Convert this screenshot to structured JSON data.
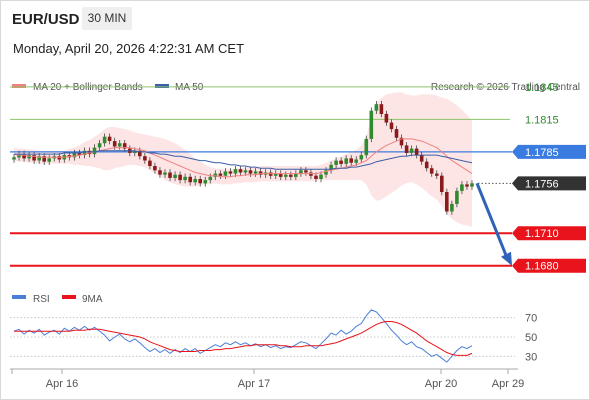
{
  "header": {
    "pair": "EUR/USD",
    "timeframe": "30 MIN",
    "datetime": "Monday, April 20, 2026 4:22:31 AM CET"
  },
  "legend": {
    "bollinger": "MA 20 + Bollinger Bands",
    "ma50": "MA 50",
    "credit": "Research © 2026 Trading Central",
    "rsi": "RSI",
    "rsi_ma": "9MA"
  },
  "colors": {
    "up": "#2e8b2e",
    "down": "#8b1a1a",
    "bollinger": "#f08080",
    "band_fill": "#fde0e0",
    "ma50": "#3a5fa8",
    "resistance": "#8cc36a",
    "support": "#e8131b",
    "pivot": "#3a7be0",
    "last": "#333333",
    "arrow": "#2f62b8",
    "rsi": "#4a7fd8",
    "rsi_ma": "#e8131b"
  },
  "chart_data": [
    {
      "type": "candlestick",
      "x_labels": [
        "Apr 16",
        "Apr 17",
        "Apr 20",
        "Apr 29"
      ],
      "ylim": [
        1.1665,
        1.1855
      ],
      "levels": [
        {
          "value": 1.1845,
          "label": "1.1845",
          "kind": "resistance"
        },
        {
          "value": 1.1815,
          "label": "1.1815",
          "kind": "resistance"
        },
        {
          "value": 1.1785,
          "label": "1.1785",
          "kind": "pivot"
        },
        {
          "value": 1.1756,
          "label": "1.1756",
          "kind": "last"
        },
        {
          "value": 1.171,
          "label": "1.1710",
          "kind": "support"
        },
        {
          "value": 1.168,
          "label": "1.1680",
          "kind": "support"
        }
      ],
      "forecast": {
        "from": 1.1756,
        "to": 1.168
      },
      "close": [
        1.178,
        1.1783,
        1.1779,
        1.1782,
        1.1777,
        1.1781,
        1.1776,
        1.1779,
        1.1781,
        1.1778,
        1.1782,
        1.178,
        1.1784,
        1.1782,
        1.1786,
        1.1783,
        1.1789,
        1.1793,
        1.1799,
        1.1795,
        1.179,
        1.1793,
        1.1788,
        1.1784,
        1.1786,
        1.1781,
        1.1777,
        1.1772,
        1.1768,
        1.1764,
        1.1766,
        1.1761,
        1.1764,
        1.1759,
        1.1762,
        1.1757,
        1.176,
        1.1756,
        1.1759,
        1.1762,
        1.1765,
        1.1763,
        1.1767,
        1.1765,
        1.1769,
        1.1766,
        1.1768,
        1.1765,
        1.1767,
        1.1764,
        1.1766,
        1.1763,
        1.1765,
        1.1762,
        1.1764,
        1.1762,
        1.1765,
        1.1768,
        1.1766,
        1.1763,
        1.176,
        1.1764,
        1.1768,
        1.1773,
        1.1777,
        1.1774,
        1.1779,
        1.1775,
        1.1778,
        1.1782,
        1.1797,
        1.1823,
        1.1829,
        1.182,
        1.1812,
        1.1806,
        1.1798,
        1.1791,
        1.1784,
        1.1788,
        1.1782,
        1.1776,
        1.177,
        1.1765,
        1.1763,
        1.1748,
        1.173,
        1.1737,
        1.1749,
        1.1755,
        1.1753,
        1.1756
      ],
      "bollinger_mid": [
        1.1783,
        1.1782,
        1.1782,
        1.1781,
        1.1781,
        1.178,
        1.178,
        1.178,
        1.178,
        1.178,
        1.178,
        1.1781,
        1.1781,
        1.1782,
        1.1783,
        1.1784,
        1.1785,
        1.1786,
        1.1787,
        1.1788,
        1.1789,
        1.1789,
        1.1789,
        1.1789,
        1.1788,
        1.1787,
        1.1786,
        1.1784,
        1.1782,
        1.178,
        1.1778,
        1.1776,
        1.1774,
        1.1772,
        1.177,
        1.1768,
        1.1766,
        1.1765,
        1.1764,
        1.1763,
        1.1763,
        1.1762,
        1.1762,
        1.1762,
        1.1763,
        1.1763,
        1.1764,
        1.1764,
        1.1764,
        1.1765,
        1.1765,
        1.1765,
        1.1765,
        1.1765,
        1.1765,
        1.1765,
        1.1765,
        1.1765,
        1.1765,
        1.1765,
        1.1765,
        1.1766,
        1.1767,
        1.1768,
        1.1769,
        1.177,
        1.1771,
        1.1772,
        1.1773,
        1.1775,
        1.1777,
        1.1781,
        1.1785,
        1.1788,
        1.1791,
        1.1793,
        1.1795,
        1.1797,
        1.1797,
        1.1797,
        1.1796,
        1.1795,
        1.1793,
        1.1791,
        1.1789,
        1.1785,
        1.1781,
        1.1777,
        1.1774,
        1.1771,
        1.1768,
        1.1765
      ],
      "bollinger_width": [
        0.0006,
        0.0006,
        0.0006,
        0.0006,
        0.0006,
        0.0006,
        0.0006,
        0.0006,
        0.0006,
        0.0006,
        0.0006,
        0.0007,
        0.0008,
        0.0009,
        0.0011,
        0.0012,
        0.0014,
        0.0016,
        0.0019,
        0.002,
        0.0019,
        0.0018,
        0.0017,
        0.0016,
        0.0015,
        0.0015,
        0.0015,
        0.0016,
        0.0017,
        0.0018,
        0.0019,
        0.0019,
        0.0019,
        0.0018,
        0.0017,
        0.0015,
        0.0013,
        0.0011,
        0.0009,
        0.0008,
        0.0007,
        0.0007,
        0.0007,
        0.0007,
        0.0007,
        0.0007,
        0.0007,
        0.0007,
        0.0007,
        0.0007,
        0.0007,
        0.0007,
        0.0007,
        0.0007,
        0.0007,
        0.0007,
        0.0007,
        0.0007,
        0.0007,
        0.0007,
        0.0007,
        0.0007,
        0.0008,
        0.0009,
        0.001,
        0.0011,
        0.0012,
        0.0013,
        0.0014,
        0.0016,
        0.0022,
        0.0036,
        0.0045,
        0.0047,
        0.0047,
        0.0046,
        0.0045,
        0.0043,
        0.0041,
        0.004,
        0.0041,
        0.0043,
        0.0045,
        0.0047,
        0.0048,
        0.005,
        0.0053,
        0.0054,
        0.0054,
        0.0053,
        0.0051,
        0.0049
      ],
      "ma50": [
        1.1783,
        1.1783,
        1.1783,
        1.1783,
        1.1783,
        1.1783,
        1.1783,
        1.1783,
        1.1783,
        1.1783,
        1.1784,
        1.1784,
        1.1784,
        1.1784,
        1.1785,
        1.1785,
        1.1785,
        1.1786,
        1.1786,
        1.1786,
        1.1786,
        1.1786,
        1.1786,
        1.1786,
        1.1786,
        1.1785,
        1.1785,
        1.1784,
        1.1784,
        1.1783,
        1.1783,
        1.1782,
        1.1781,
        1.1781,
        1.178,
        1.1779,
        1.1778,
        1.1777,
        1.1777,
        1.1776,
        1.1775,
        1.1775,
        1.1774,
        1.1773,
        1.1773,
        1.1772,
        1.1772,
        1.1771,
        1.1771,
        1.177,
        1.177,
        1.177,
        1.1769,
        1.1769,
        1.1769,
        1.1769,
        1.1769,
        1.1769,
        1.1769,
        1.1769,
        1.1769,
        1.1769,
        1.1769,
        1.1769,
        1.177,
        1.177,
        1.177,
        1.1771,
        1.1771,
        1.1772,
        1.1773,
        1.1774,
        1.1776,
        1.1777,
        1.1778,
        1.1779,
        1.178,
        1.1781,
        1.1781,
        1.1782,
        1.1782,
        1.1782,
        1.1782,
        1.1782,
        1.1782,
        1.1781,
        1.178,
        1.1779,
        1.1778,
        1.1777,
        1.1776,
        1.1775
      ]
    },
    {
      "type": "line",
      "ylim": [
        20,
        80
      ],
      "y_ticks": [
        70,
        50,
        30
      ],
      "series": [
        {
          "name": "RSI",
          "values": [
            56,
            58,
            53,
            57,
            54,
            58,
            52,
            55,
            57,
            53,
            59,
            56,
            60,
            57,
            61,
            57,
            60,
            56,
            52,
            46,
            50,
            53,
            48,
            45,
            48,
            44,
            39,
            35,
            38,
            34,
            37,
            33,
            37,
            34,
            38,
            35,
            38,
            33,
            36,
            39,
            42,
            40,
            44,
            42,
            45,
            42,
            44,
            41,
            43,
            40,
            42,
            39,
            41,
            38,
            40,
            39,
            42,
            45,
            44,
            41,
            38,
            43,
            48,
            54,
            52,
            57,
            53,
            56,
            61,
            64,
            72,
            78,
            76,
            70,
            64,
            57,
            52,
            46,
            42,
            45,
            40,
            38,
            34,
            30,
            32,
            28,
            24,
            30,
            36,
            40,
            38,
            41
          ]
        },
        {
          "name": "9MA",
          "values": [
            56,
            56,
            56,
            56,
            56,
            56,
            56,
            56,
            56,
            56,
            56,
            56,
            57,
            57,
            57,
            58,
            58,
            58,
            57,
            56,
            55,
            54,
            53,
            52,
            51,
            50,
            48,
            45,
            43,
            41,
            39,
            37,
            36,
            35,
            35,
            35,
            35,
            36,
            36,
            36,
            37,
            37,
            38,
            38,
            39,
            40,
            41,
            41,
            42,
            42,
            42,
            42,
            42,
            41,
            41,
            40,
            40,
            40,
            41,
            41,
            41,
            41,
            42,
            43,
            44,
            46,
            48,
            50,
            52,
            54,
            57,
            60,
            63,
            65,
            66,
            66,
            65,
            63,
            60,
            57,
            54,
            50,
            46,
            43,
            40,
            37,
            34,
            32,
            31,
            31,
            31,
            33
          ]
        }
      ]
    }
  ]
}
